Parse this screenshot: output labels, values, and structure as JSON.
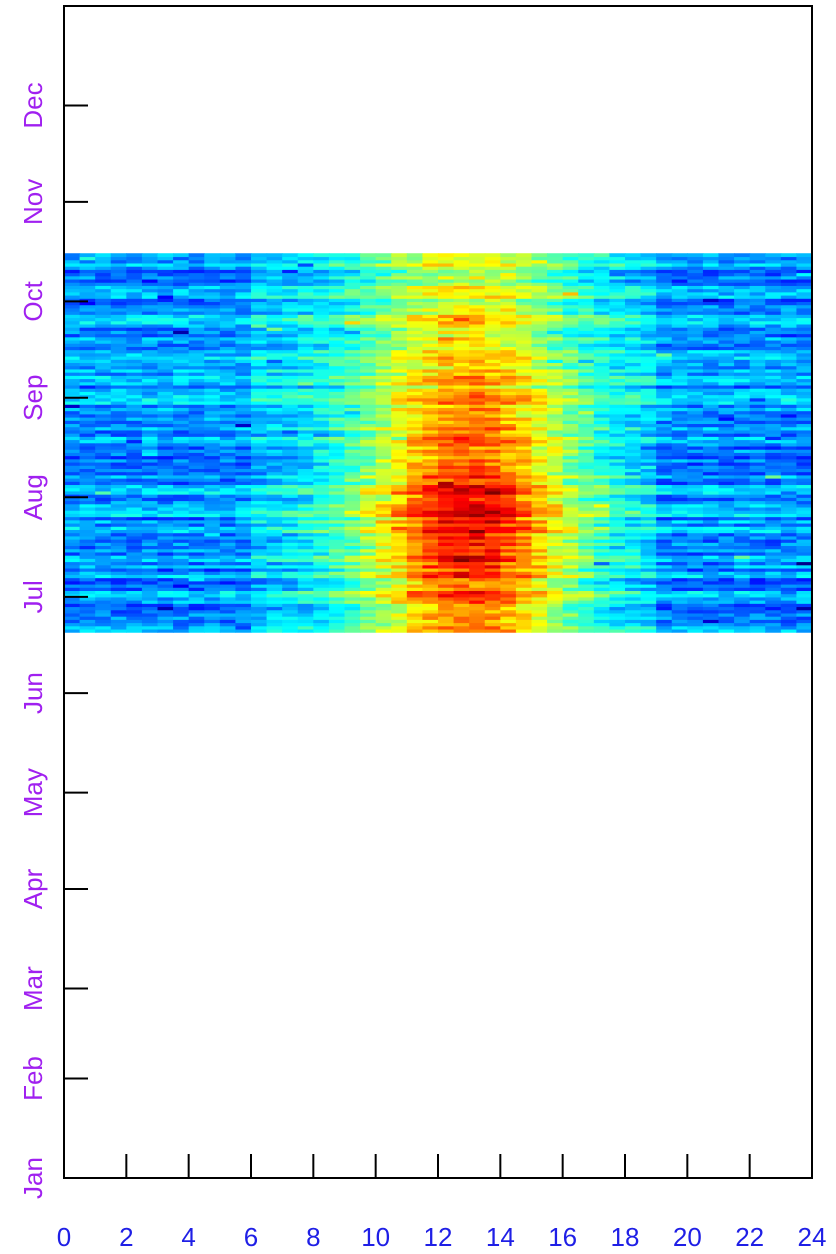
{
  "chart_data": {
    "type": "heatmap",
    "title": "",
    "xlabel": "",
    "ylabel": "",
    "x_axis": {
      "range": [
        0,
        24
      ],
      "ticks": [
        0,
        2,
        4,
        6,
        8,
        10,
        12,
        14,
        16,
        18,
        20,
        22,
        24
      ],
      "tick_labels": [
        "0",
        "2",
        "4",
        "6",
        "8",
        "10",
        "12",
        "14",
        "16",
        "18",
        "20",
        "22",
        "24"
      ],
      "label_color": "#1f1fe6"
    },
    "y_axis": {
      "range": [
        "Jan 1",
        "Dec 31"
      ],
      "ticks": [
        {
          "label": "Jan",
          "day_of_year": 1
        },
        {
          "label": "Feb",
          "day_of_year": 32
        },
        {
          "label": "Mar",
          "day_of_year": 60
        },
        {
          "label": "Apr",
          "day_of_year": 91
        },
        {
          "label": "May",
          "day_of_year": 121
        },
        {
          "label": "Jun",
          "day_of_year": 152
        },
        {
          "label": "Jul",
          "day_of_year": 182
        },
        {
          "label": "Aug",
          "day_of_year": 213
        },
        {
          "label": "Sep",
          "day_of_year": 244
        },
        {
          "label": "Oct",
          "day_of_year": 274
        },
        {
          "label": "Nov",
          "day_of_year": 305
        },
        {
          "label": "Dec",
          "day_of_year": 335
        }
      ],
      "label_color": "#a020f0"
    },
    "data_extent": {
      "hours": [
        0,
        24
      ],
      "days_of_year": [
        171,
        289
      ],
      "hour_bins": 48
    },
    "colormap": [
      "#00007f",
      "#0000ff",
      "#007fff",
      "#00ffff",
      "#7fff7f",
      "#ffff00",
      "#ff7f00",
      "#ff0000",
      "#7f0000"
    ],
    "description_pattern": {
      "night_level": 0.28,
      "day_peak_hour": 13,
      "day_peak_level": 0.82,
      "day_start_hour": 6,
      "day_end_hour": 19,
      "seasonal_peak_day": 205
    },
    "grid": false,
    "legend": "none"
  }
}
